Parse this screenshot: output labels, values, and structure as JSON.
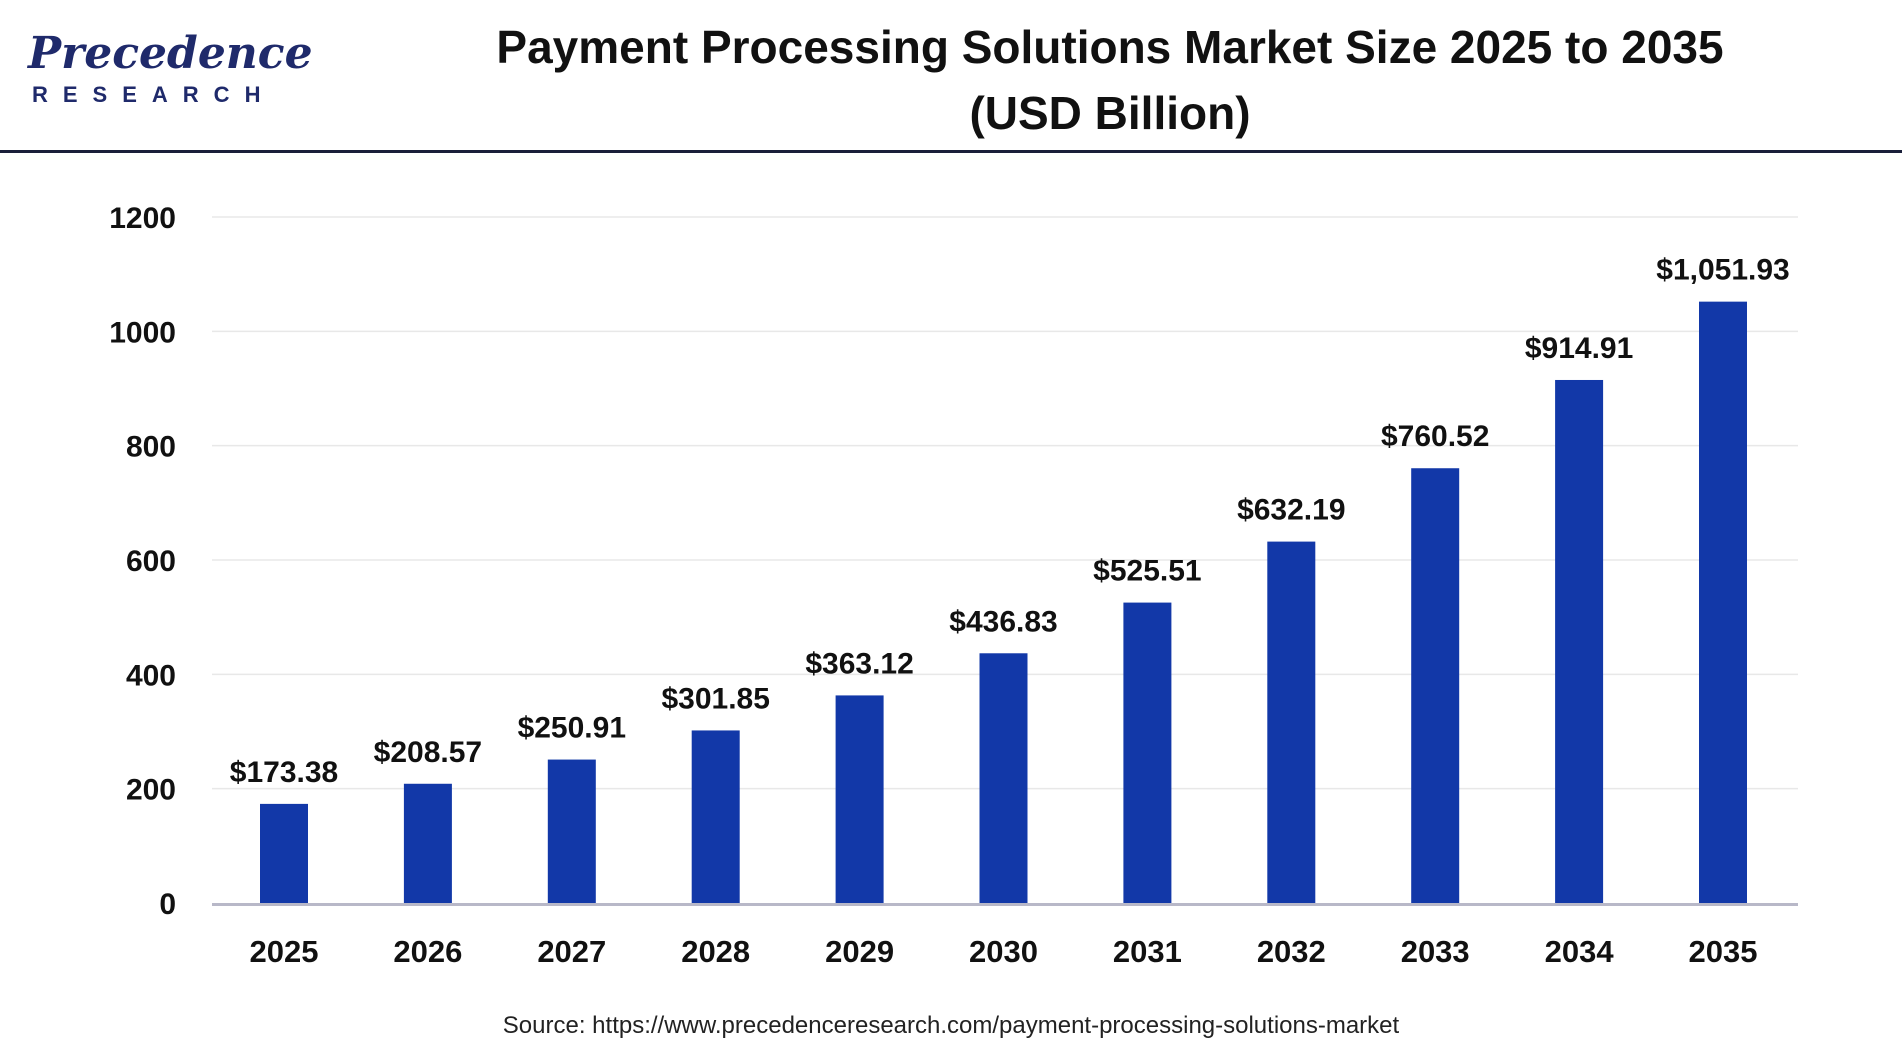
{
  "logo": {
    "main": "Precedence",
    "sub": "RESEARCH",
    "color": "#1f2a6b"
  },
  "header": {
    "title_line1": "Payment Processing Solutions Market Size 2025 to 2035",
    "title_line2": "(USD Billion)"
  },
  "source": "Source: https://www.precedenceresearch.com/payment-processing-solutions-market",
  "chart_data": {
    "type": "bar",
    "title": "Payment Processing Solutions Market Size 2025 to 2035 (USD Billion)",
    "xlabel": "",
    "ylabel": "",
    "categories": [
      "2025",
      "2026",
      "2027",
      "2028",
      "2029",
      "2030",
      "2031",
      "2032",
      "2033",
      "2034",
      "2035"
    ],
    "values": [
      173.38,
      208.57,
      250.91,
      301.85,
      363.12,
      436.83,
      525.51,
      632.19,
      760.52,
      914.91,
      1051.93
    ],
    "data_labels": [
      "$173.38",
      "$208.57",
      "$250.91",
      "$301.85",
      "$363.12",
      "$436.83",
      "$525.51",
      "$632.19",
      "$760.52",
      "$914.91",
      "$1,051.93"
    ],
    "ylim": [
      0,
      1200
    ],
    "yticks": [
      0,
      200,
      400,
      600,
      800,
      1000,
      1200
    ],
    "ytick_labels": [
      "0",
      "200",
      "400",
      "600",
      "800",
      "1000",
      "1200"
    ],
    "grid": true,
    "legend": "none",
    "bar_color": "#1238a8",
    "grid_color": "#e8e8e8",
    "axis_color": "#b8b8c8"
  }
}
